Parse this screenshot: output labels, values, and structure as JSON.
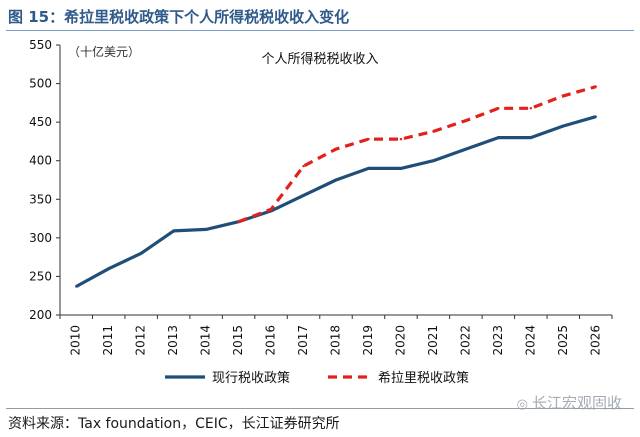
{
  "figure": {
    "title": "图 15：希拉里税收政策下个人所得税税收收入变化",
    "source": "资料来源：Tax foundation，CEIC，长江证券研究所",
    "watermark": "长江宏观固收",
    "watermark_icon": "wechat-icon"
  },
  "chart_data": {
    "type": "line",
    "unit_label": "（十亿美元）",
    "title": "个人所得税税收收入",
    "x": [
      "2010",
      "2011",
      "2012",
      "2013",
      "2014",
      "2015",
      "2016",
      "2017",
      "2018",
      "2019",
      "2020",
      "2021",
      "2022",
      "2023",
      "2024",
      "2025",
      "2026"
    ],
    "ylim": [
      200,
      550
    ],
    "yticks": [
      200,
      250,
      300,
      350,
      400,
      450,
      500,
      550
    ],
    "series": [
      {
        "name": "现行税收政策",
        "color": "#1f4e79",
        "style": "solid",
        "values": [
          237,
          260,
          280,
          309,
          311,
          321,
          335,
          355,
          375,
          390,
          390,
          400,
          415,
          430,
          430,
          445,
          457
        ]
      },
      {
        "name": "希拉里税收政策",
        "color": "#e3201c",
        "style": "dashed",
        "start_index": 5,
        "values": [
          null,
          null,
          null,
          null,
          null,
          321,
          337,
          393,
          415,
          428,
          428,
          438,
          452,
          468,
          468,
          484,
          496
        ]
      }
    ],
    "legend_position": "bottom-center"
  }
}
